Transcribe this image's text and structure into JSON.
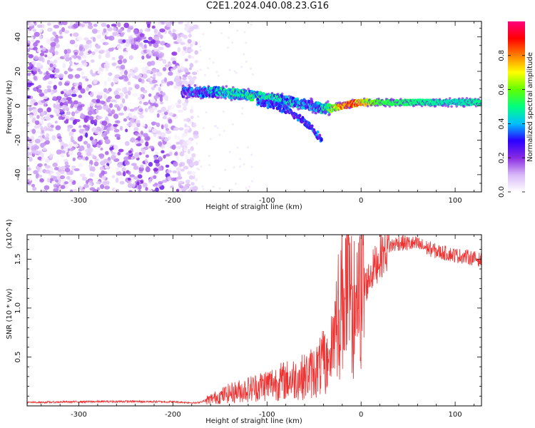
{
  "title": "C2E1.2024.040.08.23.G16",
  "chart_data": [
    {
      "type": "heatmap",
      "xlabel": "Height of straight line (km)",
      "ylabel": "Frequency (Hz)",
      "xlim": [
        -355,
        128
      ],
      "ylim": [
        -50,
        49
      ],
      "xticks": [
        -300,
        -200,
        -100,
        0,
        100
      ],
      "yticks": [
        -40,
        -20,
        0,
        20,
        40
      ],
      "colorbar": {
        "label": "Normalized spectral amplitude",
        "range": [
          0.0,
          1.0
        ],
        "ticks": [
          "0.0",
          "0.2",
          "0.4",
          "0.6",
          "0.8"
        ],
        "colormap": [
          "#ffffff",
          "#d8b8f8",
          "#8a2be2",
          "#2a00ff",
          "#00c0ff",
          "#00ff80",
          "#60ff00",
          "#ffff00",
          "#ff8000",
          "#ff0000",
          "#ff0080"
        ]
      },
      "features": [
        {
          "x_range": [
            -355,
            -175
          ],
          "freq_range": [
            -50,
            49
          ],
          "amplitude": 0.1
        },
        {
          "x": [
            -190,
            -150,
            -120,
            -90,
            -70,
            -50,
            -40,
            -30,
            -20,
            -10,
            0,
            20,
            60,
            100,
            128
          ],
          "freq": [
            8,
            8,
            6,
            4,
            2,
            0,
            -2,
            -1,
            0,
            1,
            2,
            2,
            2,
            2,
            2
          ],
          "amplitude": [
            0.25,
            0.4,
            0.45,
            0.45,
            0.35,
            0.3,
            0.4,
            0.6,
            0.8,
            0.85,
            0.7,
            0.55,
            0.5,
            0.45,
            0.5
          ]
        },
        {
          "x": [
            -110,
            -90,
            -75,
            -60,
            -50,
            -42
          ],
          "freq": [
            2,
            0,
            -4,
            -9,
            -14,
            -20
          ],
          "amplitude": 0.3
        }
      ]
    },
    {
      "type": "line",
      "xlabel": "Height of straight line (km)",
      "ylabel": "SNR (10 * v/v)",
      "multiplier": "(x10^4)",
      "xlim": [
        -355,
        128
      ],
      "ylim": [
        0,
        17500
      ],
      "xticks": [
        -300,
        -200,
        -100,
        0,
        100
      ],
      "yticks": [
        "0.5",
        "1.0",
        "1.5"
      ],
      "series": [
        {
          "color": "#ee3333",
          "x": [
            -355,
            -300,
            -250,
            -200,
            -175,
            -160,
            -140,
            -120,
            -100,
            -80,
            -60,
            -45,
            -35,
            -25,
            -18,
            -12,
            -5,
            0,
            10,
            20,
            30,
            40,
            60,
            80,
            100,
            115,
            128
          ],
          "y": [
            350,
            420,
            450,
            420,
            300,
            700,
            1300,
            1700,
            2200,
            2600,
            3000,
            3800,
            5000,
            9000,
            12000,
            11000,
            9500,
            11000,
            13500,
            15200,
            16300,
            16700,
            16500,
            15800,
            15400,
            15200,
            14900
          ]
        }
      ]
    }
  ]
}
